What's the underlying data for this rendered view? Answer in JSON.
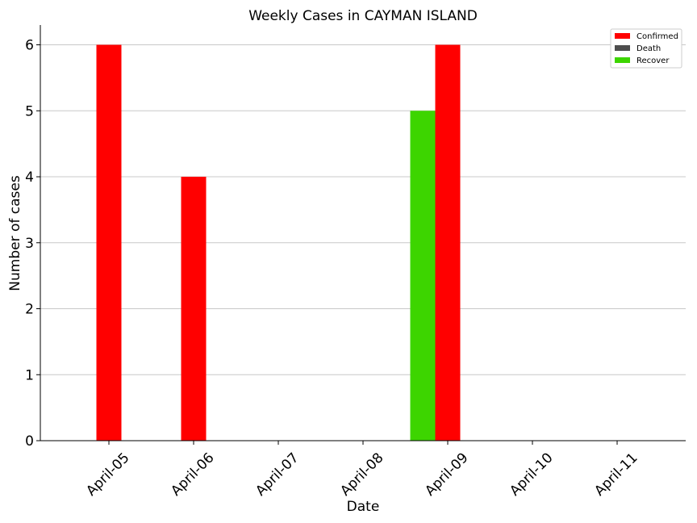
{
  "chart_data": {
    "type": "bar",
    "title": "Weekly Cases in CAYMAN ISLAND",
    "xlabel": "Date",
    "ylabel": "Number of cases",
    "categories": [
      "April-05",
      "April-06",
      "April-07",
      "April-08",
      "April-09",
      "April-10",
      "April-11"
    ],
    "series": [
      {
        "name": "Recover",
        "color": "#3dd500",
        "values": [
          0,
          0,
          0,
          0,
          5,
          0,
          0
        ]
      },
      {
        "name": "Confirmed",
        "color": "#ff0000",
        "values": [
          6,
          4,
          0,
          0,
          6,
          0,
          0
        ]
      },
      {
        "name": "Death",
        "color": "#4d4d4d",
        "values": [
          0,
          0,
          0,
          0,
          0,
          0,
          0
        ]
      }
    ],
    "legend_order": [
      "Confirmed",
      "Death",
      "Recover"
    ],
    "ylim": [
      0,
      6.3
    ],
    "yticks": [
      0,
      1,
      2,
      3,
      4,
      5,
      6
    ],
    "grid": "horizontal",
    "legend_position": "top-right"
  }
}
